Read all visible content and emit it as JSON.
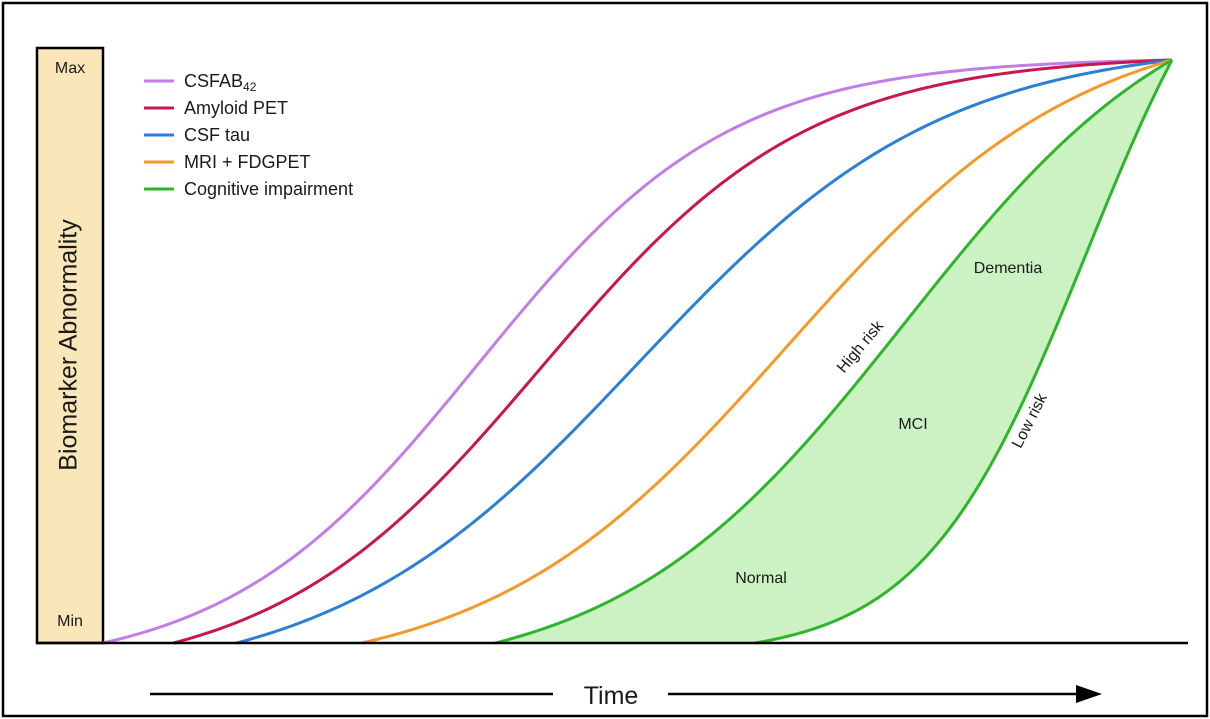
{
  "chart_data": {
    "type": "line",
    "ylabel": "Biomarker Abnormality",
    "xlabel": "Time",
    "y_ticks": {
      "max": "Max",
      "min": "Min"
    },
    "xlim": [
      0,
      100
    ],
    "ylim": [
      0,
      1
    ],
    "legend": {
      "placement": "top-left"
    },
    "series": [
      {
        "name": "CSFAB",
        "name_subscript": "42",
        "color": "#c07ee6",
        "onset": 0.0,
        "midpoint": 35,
        "steepness": 0.085
      },
      {
        "name": "Amyloid PET",
        "color": "#c8174e",
        "onset": 6.6,
        "midpoint": 41,
        "steepness": 0.08
      },
      {
        "name": "CSF tau",
        "color": "#2b7fd6",
        "onset": 12.5,
        "midpoint": 50,
        "steepness": 0.07
      },
      {
        "name": "MRI + FDGPET",
        "color": "#f39a2b",
        "onset": 24.2,
        "midpoint": 64,
        "steepness": 0.072
      },
      {
        "name": "Cognitive impairment",
        "color": "#2fb52b",
        "onset": 36.7,
        "midpoint": 75,
        "steepness": 0.075
      }
    ],
    "low_risk_curve": {
      "color": "#2fb52b",
      "onset": 61.0,
      "midpoint": 92,
      "steepness": 0.13
    },
    "region_fill": "#ccf2c4",
    "annotations": {
      "high_risk": "High risk",
      "low_risk": "Low risk",
      "dementia": "Dementia",
      "mci": "MCI",
      "normal": "Normal"
    }
  }
}
